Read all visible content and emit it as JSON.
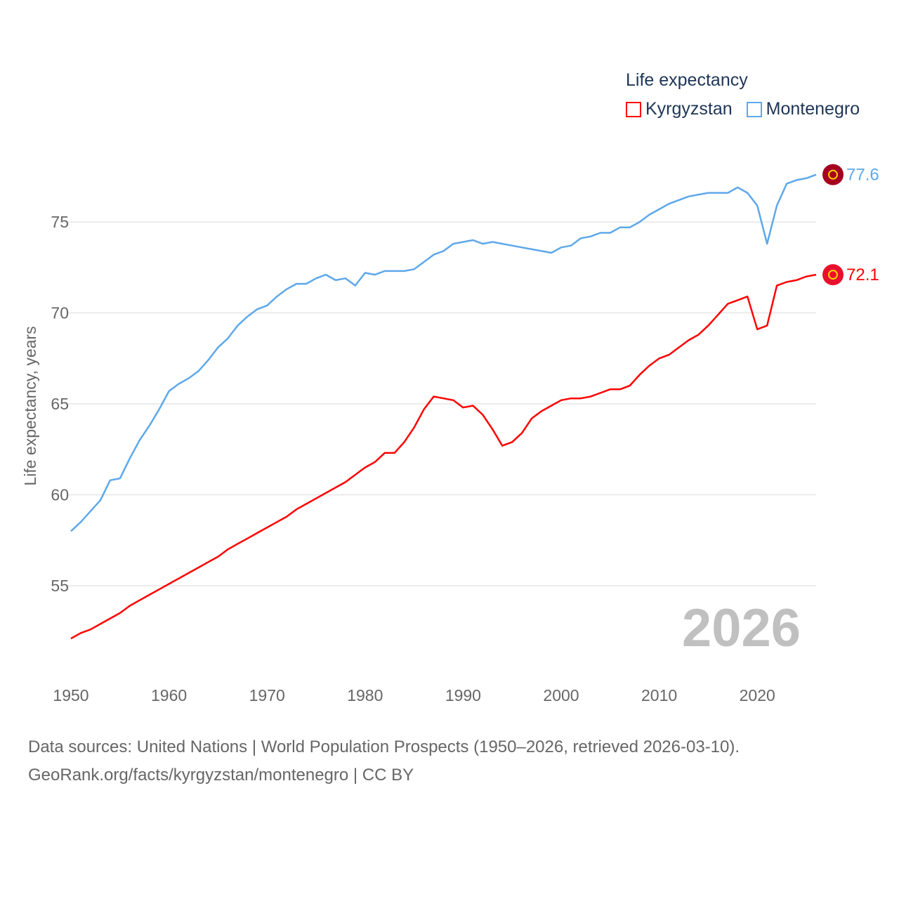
{
  "chart_data": {
    "type": "line",
    "title": "Life expectancy",
    "ylabel": "Life expectancy, years",
    "xlabel": "",
    "xlim": [
      1950,
      2026
    ],
    "ylim": [
      50.5,
      79
    ],
    "x_ticks": [
      "1950",
      "1960",
      "1970",
      "1980",
      "1990",
      "2000",
      "2010",
      "2020"
    ],
    "y_ticks": [
      "55",
      "60",
      "65",
      "70",
      "75"
    ],
    "grid": true,
    "legend_position": "top-right",
    "year_label": "2026",
    "x": [
      1950,
      1951,
      1952,
      1953,
      1954,
      1955,
      1956,
      1957,
      1958,
      1959,
      1960,
      1961,
      1962,
      1963,
      1964,
      1965,
      1966,
      1967,
      1968,
      1969,
      1970,
      1971,
      1972,
      1973,
      1974,
      1975,
      1976,
      1977,
      1978,
      1979,
      1980,
      1981,
      1982,
      1983,
      1984,
      1985,
      1986,
      1987,
      1988,
      1989,
      1990,
      1991,
      1992,
      1993,
      1994,
      1995,
      1996,
      1997,
      1998,
      1999,
      2000,
      2001,
      2002,
      2003,
      2004,
      2005,
      2006,
      2007,
      2008,
      2009,
      2010,
      2011,
      2012,
      2013,
      2014,
      2015,
      2016,
      2017,
      2018,
      2019,
      2020,
      2021,
      2022,
      2023,
      2024,
      2025,
      2026
    ],
    "series": [
      {
        "name": "Kyrgyzstan",
        "color": "#ff0000",
        "end_label": "72.1",
        "flag_color": "#e8112d",
        "values": [
          52.1,
          52.4,
          52.6,
          52.9,
          53.2,
          53.5,
          53.9,
          54.2,
          54.5,
          54.8,
          55.1,
          55.4,
          55.7,
          56.0,
          56.3,
          56.6,
          57.0,
          57.3,
          57.6,
          57.9,
          58.2,
          58.5,
          58.8,
          59.2,
          59.5,
          59.8,
          60.1,
          60.4,
          60.7,
          61.1,
          61.5,
          61.8,
          62.3,
          62.3,
          62.9,
          63.7,
          64.7,
          65.4,
          65.3,
          65.2,
          64.8,
          64.9,
          64.4,
          63.6,
          62.7,
          62.9,
          63.4,
          64.2,
          64.6,
          64.9,
          65.2,
          65.3,
          65.3,
          65.4,
          65.6,
          65.8,
          65.8,
          66.0,
          66.6,
          67.1,
          67.5,
          67.7,
          68.1,
          68.5,
          68.8,
          69.3,
          69.9,
          70.5,
          70.7,
          70.9,
          69.1,
          69.3,
          71.5,
          71.7,
          71.8,
          72.0,
          72.1
        ]
      },
      {
        "name": "Montenegro",
        "color": "#5ea8ea",
        "end_label": "77.6",
        "flag_color": "#a5001f",
        "values": [
          58.0,
          58.5,
          59.1,
          59.7,
          60.8,
          60.9,
          62.0,
          63.0,
          63.8,
          64.7,
          65.7,
          66.1,
          66.4,
          66.8,
          67.4,
          68.1,
          68.6,
          69.3,
          69.8,
          70.2,
          70.4,
          70.9,
          71.3,
          71.6,
          71.6,
          71.9,
          72.1,
          71.8,
          71.9,
          71.5,
          72.2,
          72.1,
          72.3,
          72.3,
          72.3,
          72.4,
          72.8,
          73.2,
          73.4,
          73.8,
          73.9,
          74.0,
          73.8,
          73.9,
          73.8,
          73.7,
          73.6,
          73.5,
          73.4,
          73.3,
          73.6,
          73.7,
          74.1,
          74.2,
          74.4,
          74.4,
          74.7,
          74.7,
          75.0,
          75.4,
          75.7,
          76.0,
          76.2,
          76.4,
          76.5,
          76.6,
          76.6,
          76.6,
          76.9,
          76.6,
          75.9,
          73.8,
          75.9,
          77.1,
          77.3,
          77.4,
          77.6
        ]
      }
    ]
  },
  "source": {
    "line1": "Data sources: United Nations | World Population Prospects (1950–2026, retrieved 2026-03-10).",
    "line2": "GeoRank.org/facts/kyrgyzstan/montenegro | CC BY"
  }
}
